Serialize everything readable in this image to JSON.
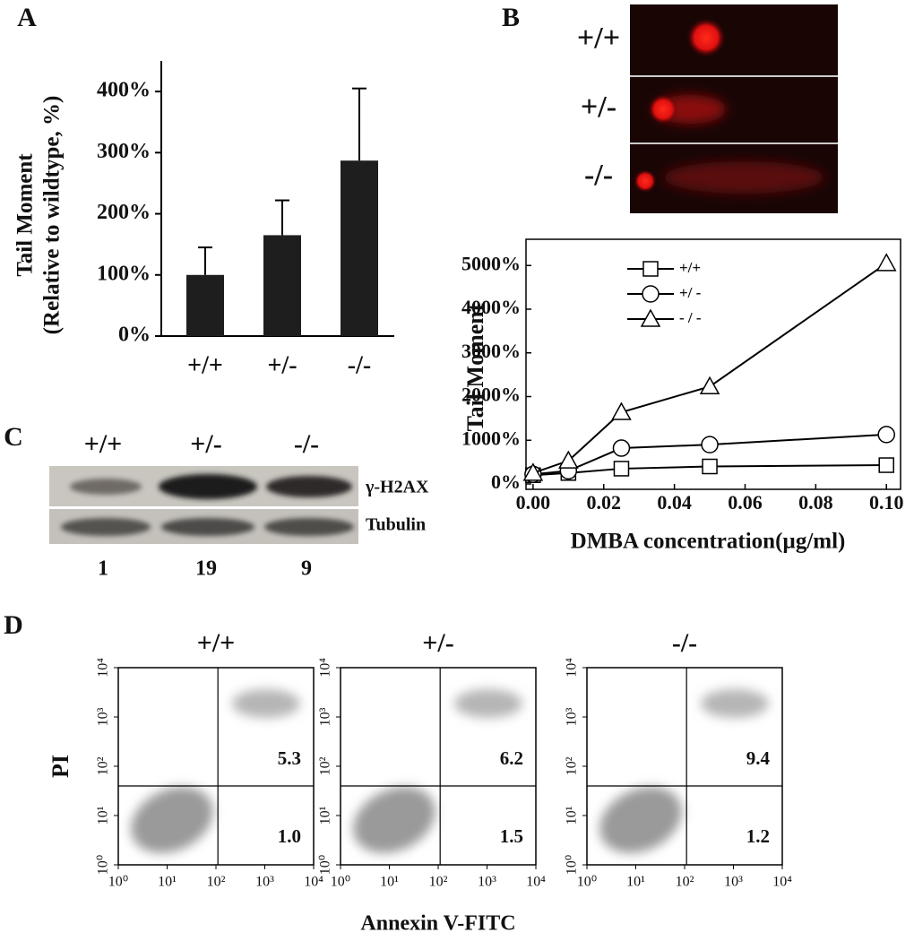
{
  "panel_labels": [
    "A",
    "B",
    "C",
    "D"
  ],
  "chart_data": [
    {
      "type": "bar",
      "categories": [
        "+/+",
        "+/-",
        "-/-"
      ],
      "values": [
        100,
        165,
        287
      ],
      "errors": [
        45,
        57,
        118
      ],
      "color": "#1e1e1e",
      "ylabel": [
        "Tail Moment",
        "(Relative to wildtype, %)"
      ],
      "ylim": [
        0,
        450
      ],
      "yticks": [
        {
          "value": 0,
          "label": "0%"
        },
        {
          "value": 100,
          "label": "100%"
        },
        {
          "value": 200,
          "label": "200%"
        },
        {
          "value": 300,
          "label": "300%"
        },
        {
          "value": 400,
          "label": "400%"
        }
      ]
    },
    {
      "type": "line",
      "xlabel": "DMBA concentration(µg/ml)",
      "ylabel": "Tail Moment",
      "x": [
        0,
        0.01,
        0.025,
        0.05,
        0.1
      ],
      "series": [
        {
          "name": "+/+",
          "marker": "square",
          "color": "#000000",
          "values": [
            200,
            250,
            350,
            400,
            430
          ]
        },
        {
          "name": "+/ -",
          "marker": "circle",
          "color": "#000000",
          "values": [
            220,
            300,
            820,
            900,
            1130
          ]
        },
        {
          "name": "- / -",
          "marker": "triangle",
          "color": "#000000",
          "values": [
            250,
            530,
            1640,
            2230,
            5050
          ]
        }
      ],
      "xlim": [
        -0.002,
        0.104
      ],
      "ylim": [
        0,
        5600
      ],
      "xticks": [
        {
          "value": 0,
          "label": "0.00"
        },
        {
          "value": 0.02,
          "label": "0.02"
        },
        {
          "value": 0.04,
          "label": "0.04"
        },
        {
          "value": 0.06,
          "label": "0.06"
        },
        {
          "value": 0.08,
          "label": "0.08"
        },
        {
          "value": 0.1,
          "label": "0.10"
        }
      ],
      "yticks": [
        {
          "value": 0,
          "label": "0%"
        },
        {
          "value": 1000,
          "label": "1000%"
        },
        {
          "value": 2000,
          "label": "2000%"
        },
        {
          "value": 3000,
          "label": "3000%"
        },
        {
          "value": 4000,
          "label": "4000%"
        },
        {
          "value": 5000,
          "label": "5000%"
        }
      ],
      "legend": "upper-left"
    },
    {
      "type": "flow",
      "title": "+/+",
      "ylabel": "PI",
      "log_scale": true,
      "xlim": [
        1,
        10000
      ],
      "ylim": [
        1,
        10000
      ],
      "xticks": [
        {
          "value": 1,
          "label": "10⁰"
        },
        {
          "value": 10,
          "label": "10¹"
        },
        {
          "value": 100,
          "label": "10²"
        },
        {
          "value": 1000,
          "label": "10³"
        },
        {
          "value": 10000,
          "label": "10⁴"
        }
      ],
      "yticks": [
        {
          "value": 1,
          "label": "10⁰"
        },
        {
          "value": 10,
          "label": "10¹"
        },
        {
          "value": 100,
          "label": "10²"
        },
        {
          "value": 1000,
          "label": "10³"
        },
        {
          "value": 10000,
          "label": "10⁴"
        }
      ],
      "values": [
        5.3,
        1.0
      ],
      "value_labels": [
        "5.3",
        "1.0"
      ]
    },
    {
      "type": "flow",
      "title": "+/-",
      "xlabel": "Annexin V-FITC",
      "log_scale": true,
      "xlim": [
        1,
        10000
      ],
      "ylim": [
        1,
        10000
      ],
      "xticks": [
        {
          "value": 1,
          "label": "10⁰"
        },
        {
          "value": 10,
          "label": "10¹"
        },
        {
          "value": 100,
          "label": "10²"
        },
        {
          "value": 1000,
          "label": "10³"
        },
        {
          "value": 10000,
          "label": "10⁴"
        }
      ],
      "yticks": [
        {
          "value": 1,
          "label": "10⁰"
        },
        {
          "value": 10,
          "label": "10¹"
        },
        {
          "value": 100,
          "label": "10²"
        },
        {
          "value": 1000,
          "label": "10³"
        },
        {
          "value": 10000,
          "label": "10⁴"
        }
      ],
      "values": [
        6.2,
        1.5
      ],
      "value_labels": [
        "6.2",
        "1.5"
      ]
    },
    {
      "type": "flow",
      "title": "-/-",
      "log_scale": true,
      "xlim": [
        1,
        10000
      ],
      "ylim": [
        1,
        10000
      ],
      "xticks": [
        {
          "value": 1,
          "label": "10⁰"
        },
        {
          "value": 10,
          "label": "10¹"
        },
        {
          "value": 100,
          "label": "10²"
        },
        {
          "value": 1000,
          "label": "10³"
        },
        {
          "value": 10000,
          "label": "10⁴"
        }
      ],
      "yticks": [
        {
          "value": 1,
          "label": "10⁰"
        },
        {
          "value": 10,
          "label": "10¹"
        },
        {
          "value": 100,
          "label": "10²"
        },
        {
          "value": 1000,
          "label": "10³"
        },
        {
          "value": 10000,
          "label": "10⁴"
        }
      ],
      "values": [
        9.4,
        1.2
      ],
      "value_labels": [
        "9.4",
        "1.2"
      ]
    }
  ],
  "comet": {
    "rows": [
      "+/+",
      "+/-",
      "-/-"
    ]
  },
  "western_blot": {
    "columns": [
      "+/+",
      "+/-",
      "-/-"
    ],
    "rows": [
      "γ-H2AX",
      "Tubulin"
    ],
    "fold_change": [
      1,
      19,
      9
    ]
  }
}
